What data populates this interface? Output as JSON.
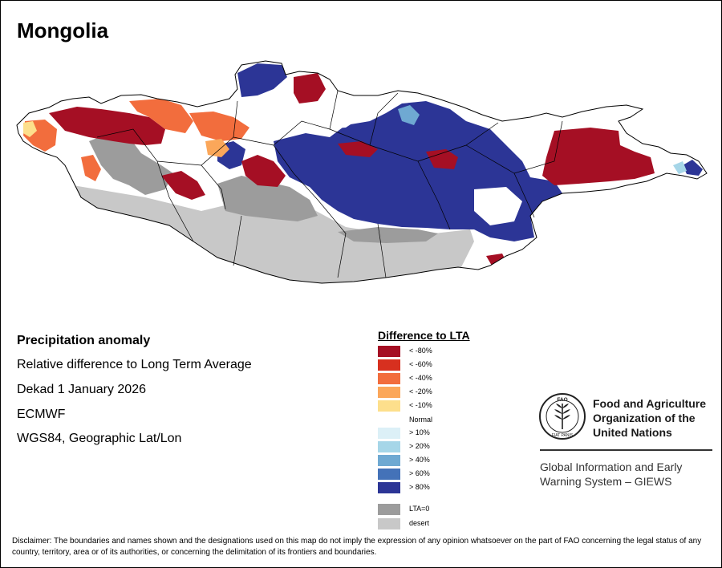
{
  "title": "Mongolia",
  "info": {
    "heading": "Precipitation anomaly",
    "line1": "Relative difference to Long Term Average",
    "line2": "Dekad 1 January 2026",
    "line3": "ECMWF",
    "line4": "WGS84, Geographic Lat/Lon"
  },
  "legend": {
    "title": "Difference to LTA",
    "items": [
      {
        "label": "< -80%",
        "color": "#a50f24"
      },
      {
        "label": "< -60%",
        "color": "#d7301f"
      },
      {
        "label": "< -40%",
        "color": "#f26d3d"
      },
      {
        "label": "< -20%",
        "color": "#fba75a"
      },
      {
        "label": "< -10%",
        "color": "#fddf8c"
      },
      {
        "label": "> 10%",
        "color": "#dcf0f7"
      },
      {
        "label": "> 20%",
        "color": "#a6d6e8"
      },
      {
        "label": "> 40%",
        "color": "#6fa9d2"
      },
      {
        "label": "> 60%",
        "color": "#4472b8"
      },
      {
        "label": "> 80%",
        "color": "#2c3596"
      },
      {
        "label": "LTA=0",
        "color": "#9c9c9c"
      },
      {
        "label": "desert",
        "color": "#c8c8c8"
      }
    ],
    "normal_label": "Normal"
  },
  "organization": {
    "line1": "Food and Agriculture",
    "line2": "Organization of the",
    "line3": "United Nations",
    "giews_line1": "Global Information and Early",
    "giews_line2": "Warning System – GIEWS",
    "emblem_text": "FAO",
    "motto": "FIAT PANIS"
  },
  "disclaimer": "Disclaimer: The boundaries and names shown and the designations used on this map do not imply the expression of any opinion whatsoever on the part of FAO concerning the legal status of any country, territory, area or of its authorities, or concerning the delimitation of its frontiers and boundaries."
}
